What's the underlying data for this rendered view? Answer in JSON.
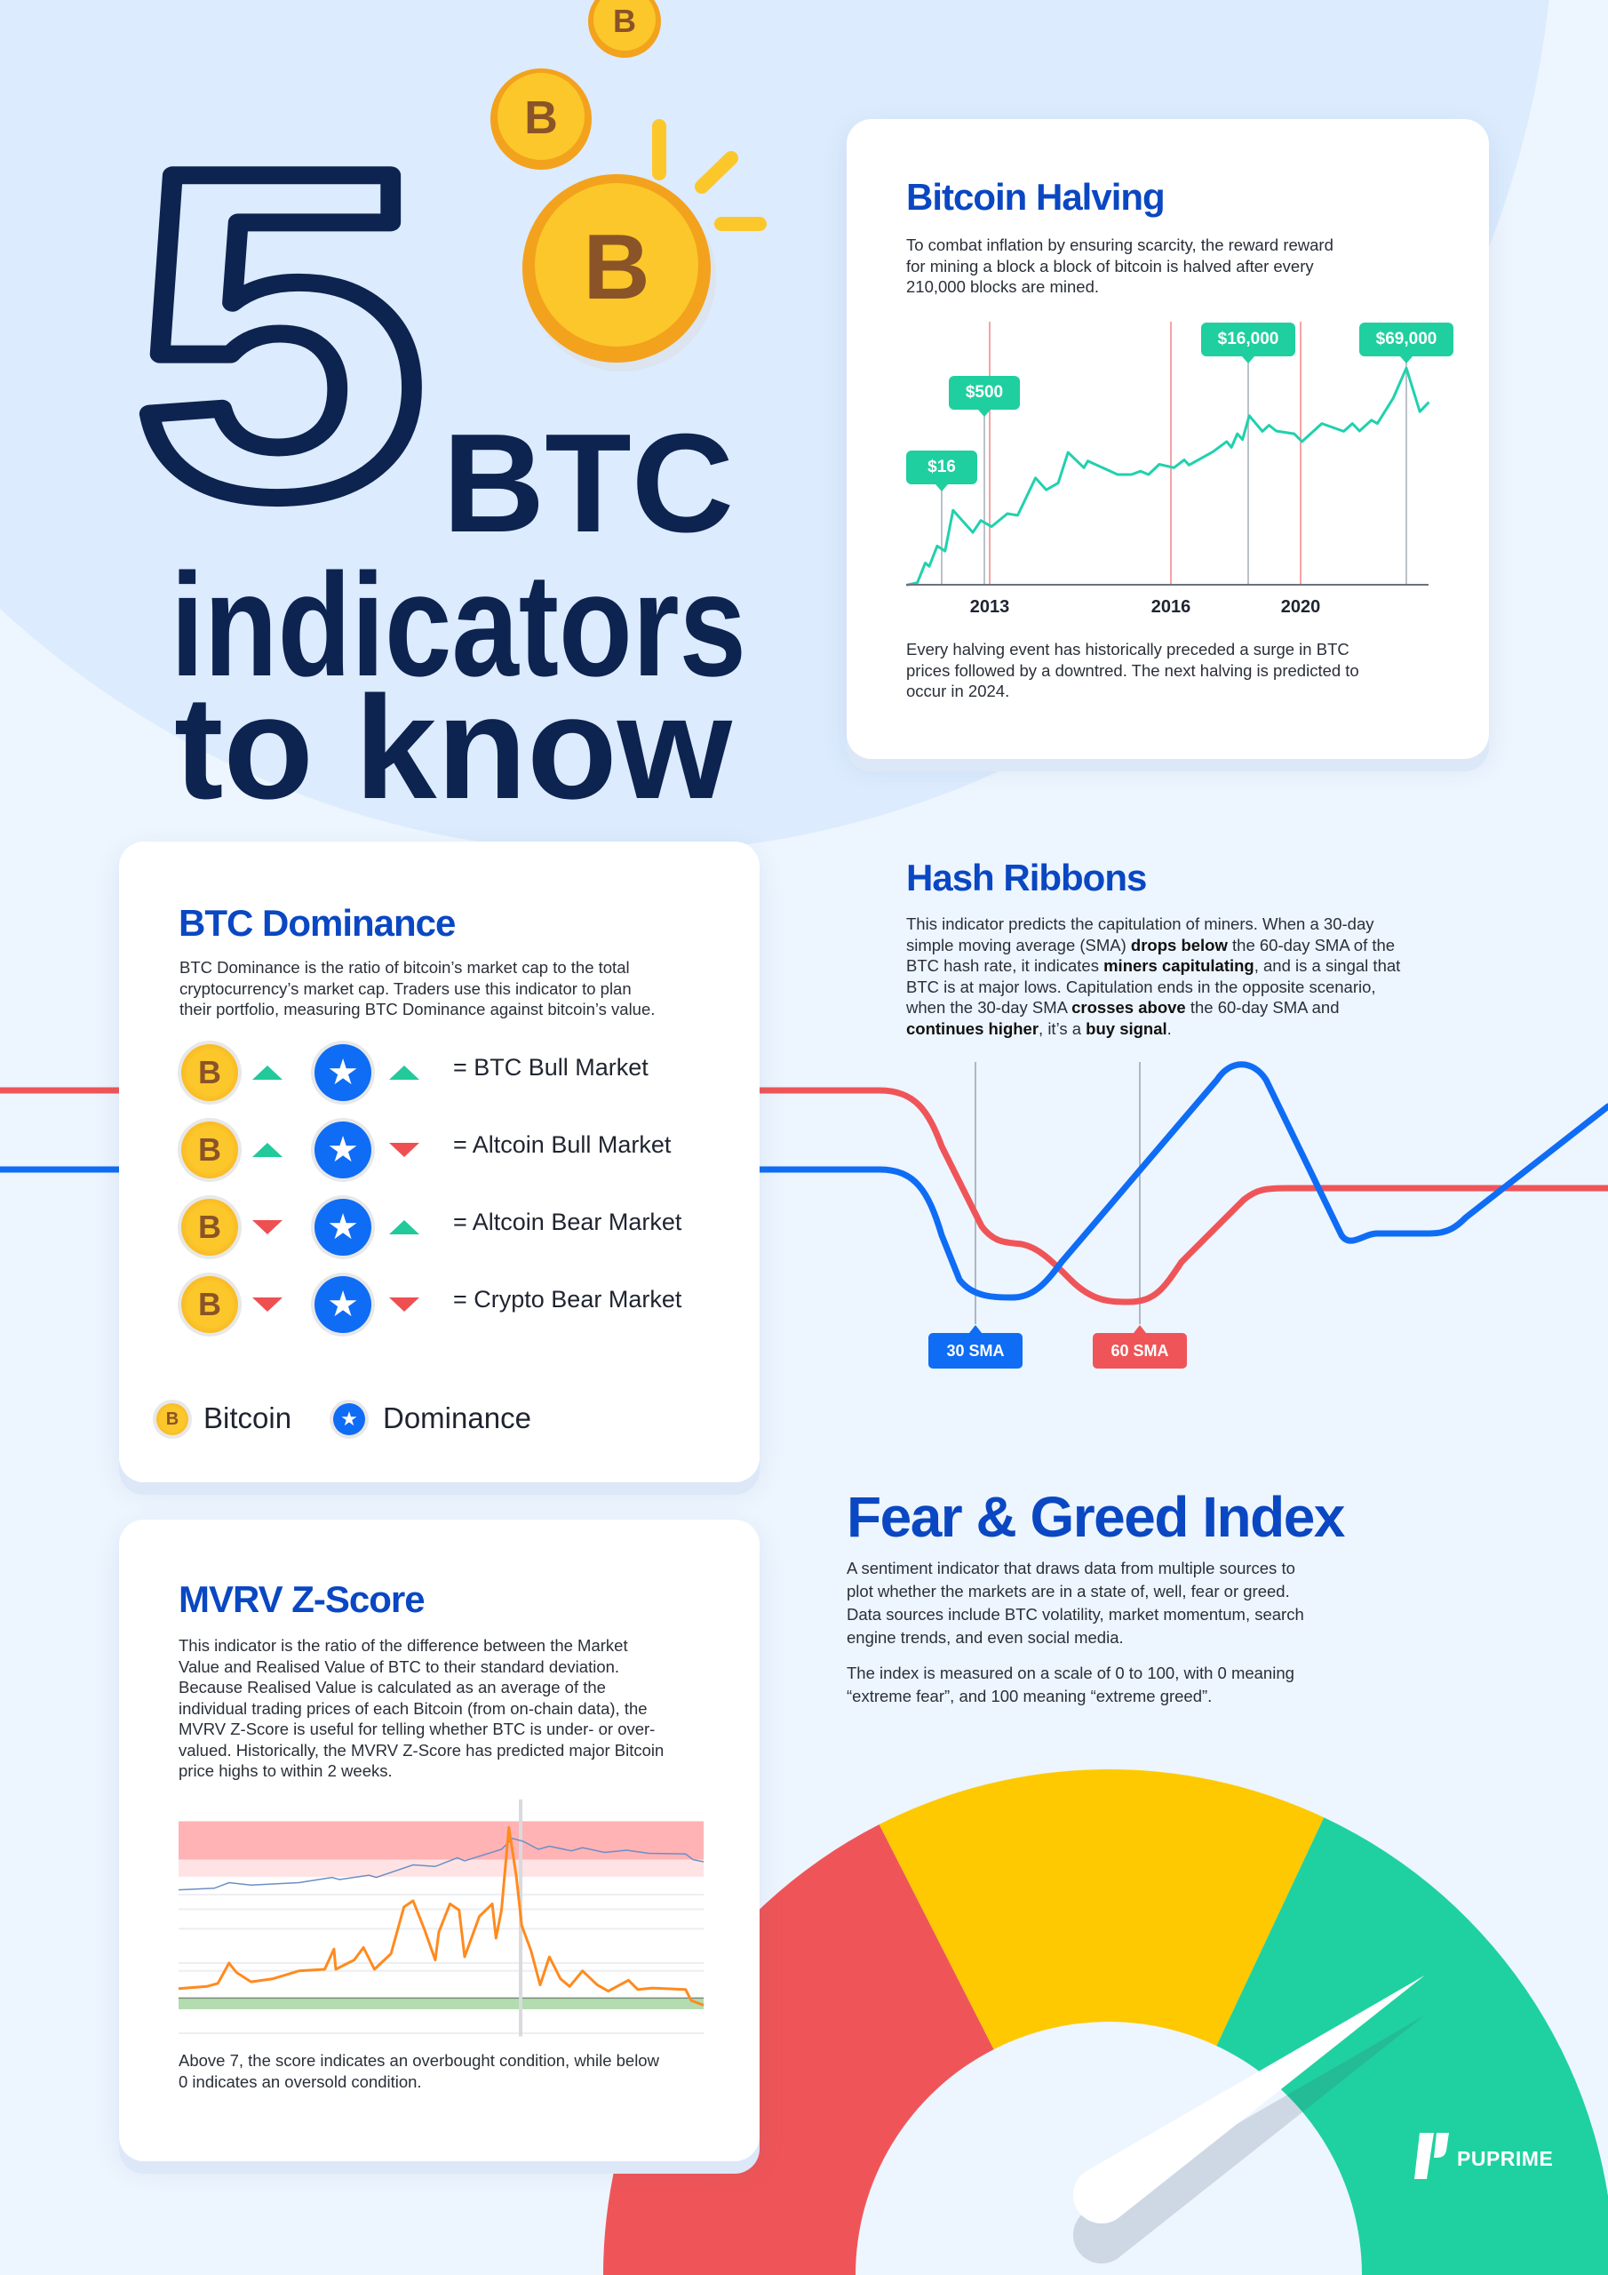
{
  "colors": {
    "title_blue": "#0a47c2",
    "navy": "#0d2350",
    "teal": "#1fd1a0",
    "red": "#ef5558",
    "yellow": "#fec900",
    "blue": "#0f6cf5"
  },
  "hero": {
    "number": "5",
    "line1": "BTC",
    "line2": "indicators",
    "line3": "to know"
  },
  "halving": {
    "title": "Bitcoin Halving",
    "intro": [
      "To combat inflation by ensuring scarcity, the reward  reward",
      "for mining a block a block of bitcoin is halved after every",
      "210,000 blocks are mined."
    ],
    "outro": [
      "Every halving event has historically preceded a surge in BTC",
      "prices followed by a downtred. The next halving is predicted to",
      "occur in 2024."
    ],
    "chart_data": {
      "type": "line",
      "x_tick_labels": [
        "2013",
        "2016",
        "2020"
      ],
      "halving_markers": [
        "2013",
        "2016",
        "2020"
      ],
      "price_callouts": [
        "$16",
        "$500",
        "$16,000",
        "$69,000"
      ],
      "grid": false
    }
  },
  "dominance": {
    "title": "BTC Dominance",
    "intro": [
      "BTC Dominance is the ratio of bitcoin’s market cap to the total",
      "cryptocurrency’s market cap. Traders use this indicator to plan",
      "their portfolio, measuring BTC Dominance against bitcoin’s value."
    ],
    "rows": [
      {
        "bitcoin": "up",
        "dominance": "up",
        "label": "= BTC Bull Market"
      },
      {
        "bitcoin": "up",
        "dominance": "down",
        "label": "= Altcoin Bull Market"
      },
      {
        "bitcoin": "down",
        "dominance": "up",
        "label": "= Altcoin Bear Market"
      },
      {
        "bitcoin": "down",
        "dominance": "down",
        "label": "= Crypto Bear Market"
      }
    ],
    "legend": {
      "bitcoin": "Bitcoin",
      "dominance": "Dominance"
    }
  },
  "hash": {
    "title": "Hash Ribbons",
    "lines": [
      [
        {
          "t": "This indicator predicts the capitulation of miners. When a 30-day"
        }
      ],
      [
        {
          "t": "simple moving average (SMA) "
        },
        {
          "t": "drops below",
          "b": true
        },
        {
          "t": " the 60-day SMA of the"
        }
      ],
      [
        {
          "t": "BTC hash rate, it indicates "
        },
        {
          "t": "miners capitulating",
          "b": true
        },
        {
          "t": ", and is a singal that"
        }
      ],
      [
        {
          "t": "BTC is at major lows. Capitulation ends in the opposite scenario,"
        }
      ],
      [
        {
          "t": "when the 30-day SMA "
        },
        {
          "t": "crosses above",
          "b": true
        },
        {
          "t": " the 60-day SMA and"
        }
      ],
      [
        {
          "t": "continues higher",
          "b": true
        },
        {
          "t": ", it’s a "
        },
        {
          "t": "buy signal",
          "b": true
        },
        {
          "t": "."
        }
      ]
    ],
    "label_30": "30 SMA",
    "label_60": "60 SMA"
  },
  "mvrv": {
    "title": "MVRV Z-Score",
    "intro": [
      "This indicator is the ratio of the difference between the Market",
      "Value and Realised Value of BTC to their standard deviation.",
      "Because Realised Value is calculated as an average of the",
      "individual trading prices of each Bitcoin (from on-chain data), the",
      "MVRV Z-Score is useful for telling whether BTC is under- or over-",
      "valued. Historically, the MVRV Z-Score has predicted major Bitcoin",
      "price highs to within 2 weeks."
    ],
    "outro": [
      "Above 7, the score indicates an overbought condition, while below",
      "0 indicates an oversold condition."
    ]
  },
  "fear_greed": {
    "title": "Fear & Greed Index",
    "intro": [
      "A sentiment indicator that draws data from multiple sources to",
      "plot whether the markets are in a state of, well, fear or greed.",
      "Data sources include BTC volatility, market momentum, search",
      "engine trends, and even social media."
    ],
    "scale": [
      "The index is measured on a scale of 0 to 100, with 0 meaning",
      "“extreme fear”, and 100 meaning “extreme greed”."
    ],
    "gauge": {
      "min": 0,
      "max": 100,
      "segments": [
        {
          "from": 0,
          "to": 35,
          "color": "#ef5558"
        },
        {
          "from": 35,
          "to": 64,
          "color": "#fec900"
        },
        {
          "from": 64,
          "to": 100,
          "color": "#1fd1a0"
        }
      ],
      "needle_value": 81
    }
  },
  "brand": {
    "name": "PUPRIME"
  }
}
